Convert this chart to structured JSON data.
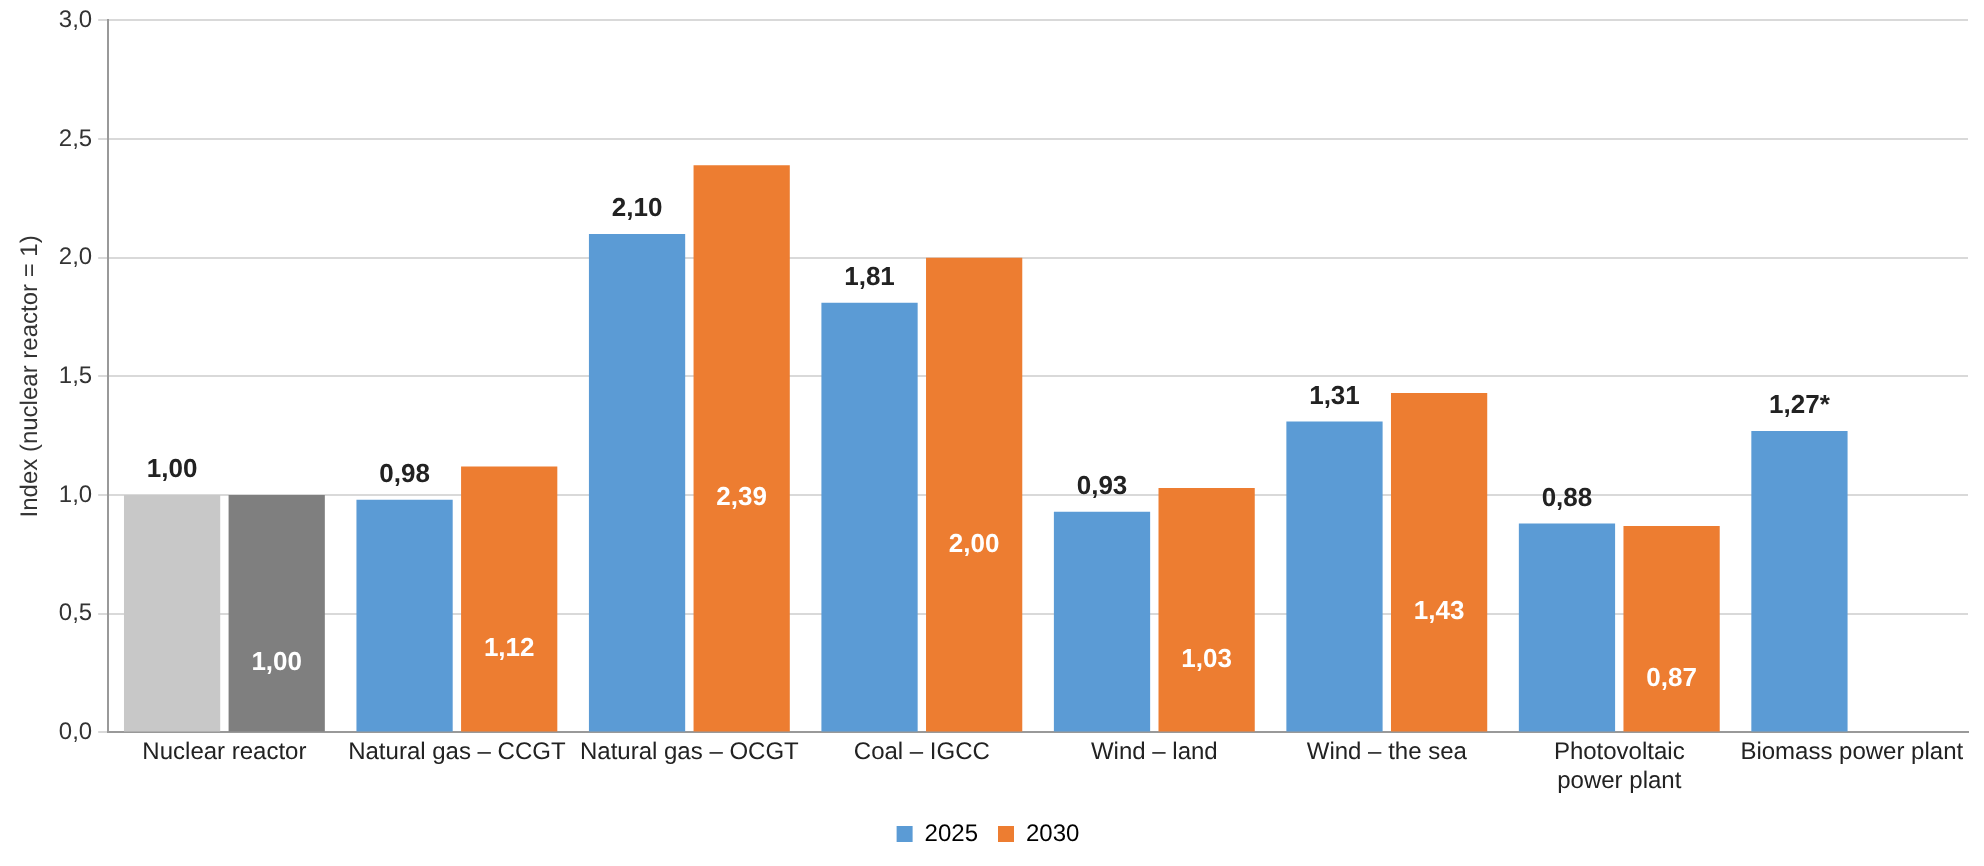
{
  "chart_data": {
    "type": "bar",
    "ylabel": "Index (nuclear reactor = 1)",
    "categories": [
      "Nuclear reactor",
      "Natural gas – CCGT",
      "Natural gas – OCGT",
      "Coal – IGCC",
      "Wind – land",
      "Wind – the sea",
      "Photovoltaic power plant",
      "Biomass power plant"
    ],
    "series": [
      {
        "name": "2025",
        "color": "#5b9bd5",
        "colors": [
          "#c8c8c8",
          "#5b9bd5",
          "#5b9bd5",
          "#5b9bd5",
          "#5b9bd5",
          "#5b9bd5",
          "#5b9bd5",
          "#5b9bd5"
        ],
        "values": [
          1.0,
          0.98,
          2.1,
          1.81,
          0.93,
          1.31,
          0.88,
          1.27
        ],
        "value_labels": [
          "1,00",
          "0,98",
          "2,10",
          "1,81",
          "0,93",
          "1,31",
          "0,88",
          "1,27*"
        ]
      },
      {
        "name": "2030",
        "color": "#ed7d31",
        "colors": [
          "#7f7f7f",
          "#ed7d31",
          "#ed7d31",
          "#ed7d31",
          "#ed7d31",
          "#ed7d31",
          "#ed7d31",
          "#ed7d31"
        ],
        "values": [
          1.0,
          1.12,
          2.39,
          2.0,
          1.03,
          1.43,
          0.87,
          null
        ],
        "value_labels": [
          "1,00",
          "1,12",
          "2,39",
          "2,00",
          "1,03",
          "1,43",
          "0,87",
          null
        ]
      }
    ],
    "ylim": [
      0,
      3
    ],
    "yticks": [
      {
        "value": 0,
        "label": "0,0"
      },
      {
        "value": 0.5,
        "label": "0,5"
      },
      {
        "value": 1,
        "label": "1,0"
      },
      {
        "value": 1.5,
        "label": "1,5"
      },
      {
        "value": 2,
        "label": "2,0"
      },
      {
        "value": 2.5,
        "label": "2,5"
      },
      {
        "value": 3,
        "label": "3,0"
      }
    ],
    "grid": "y",
    "legend": "bottom"
  }
}
